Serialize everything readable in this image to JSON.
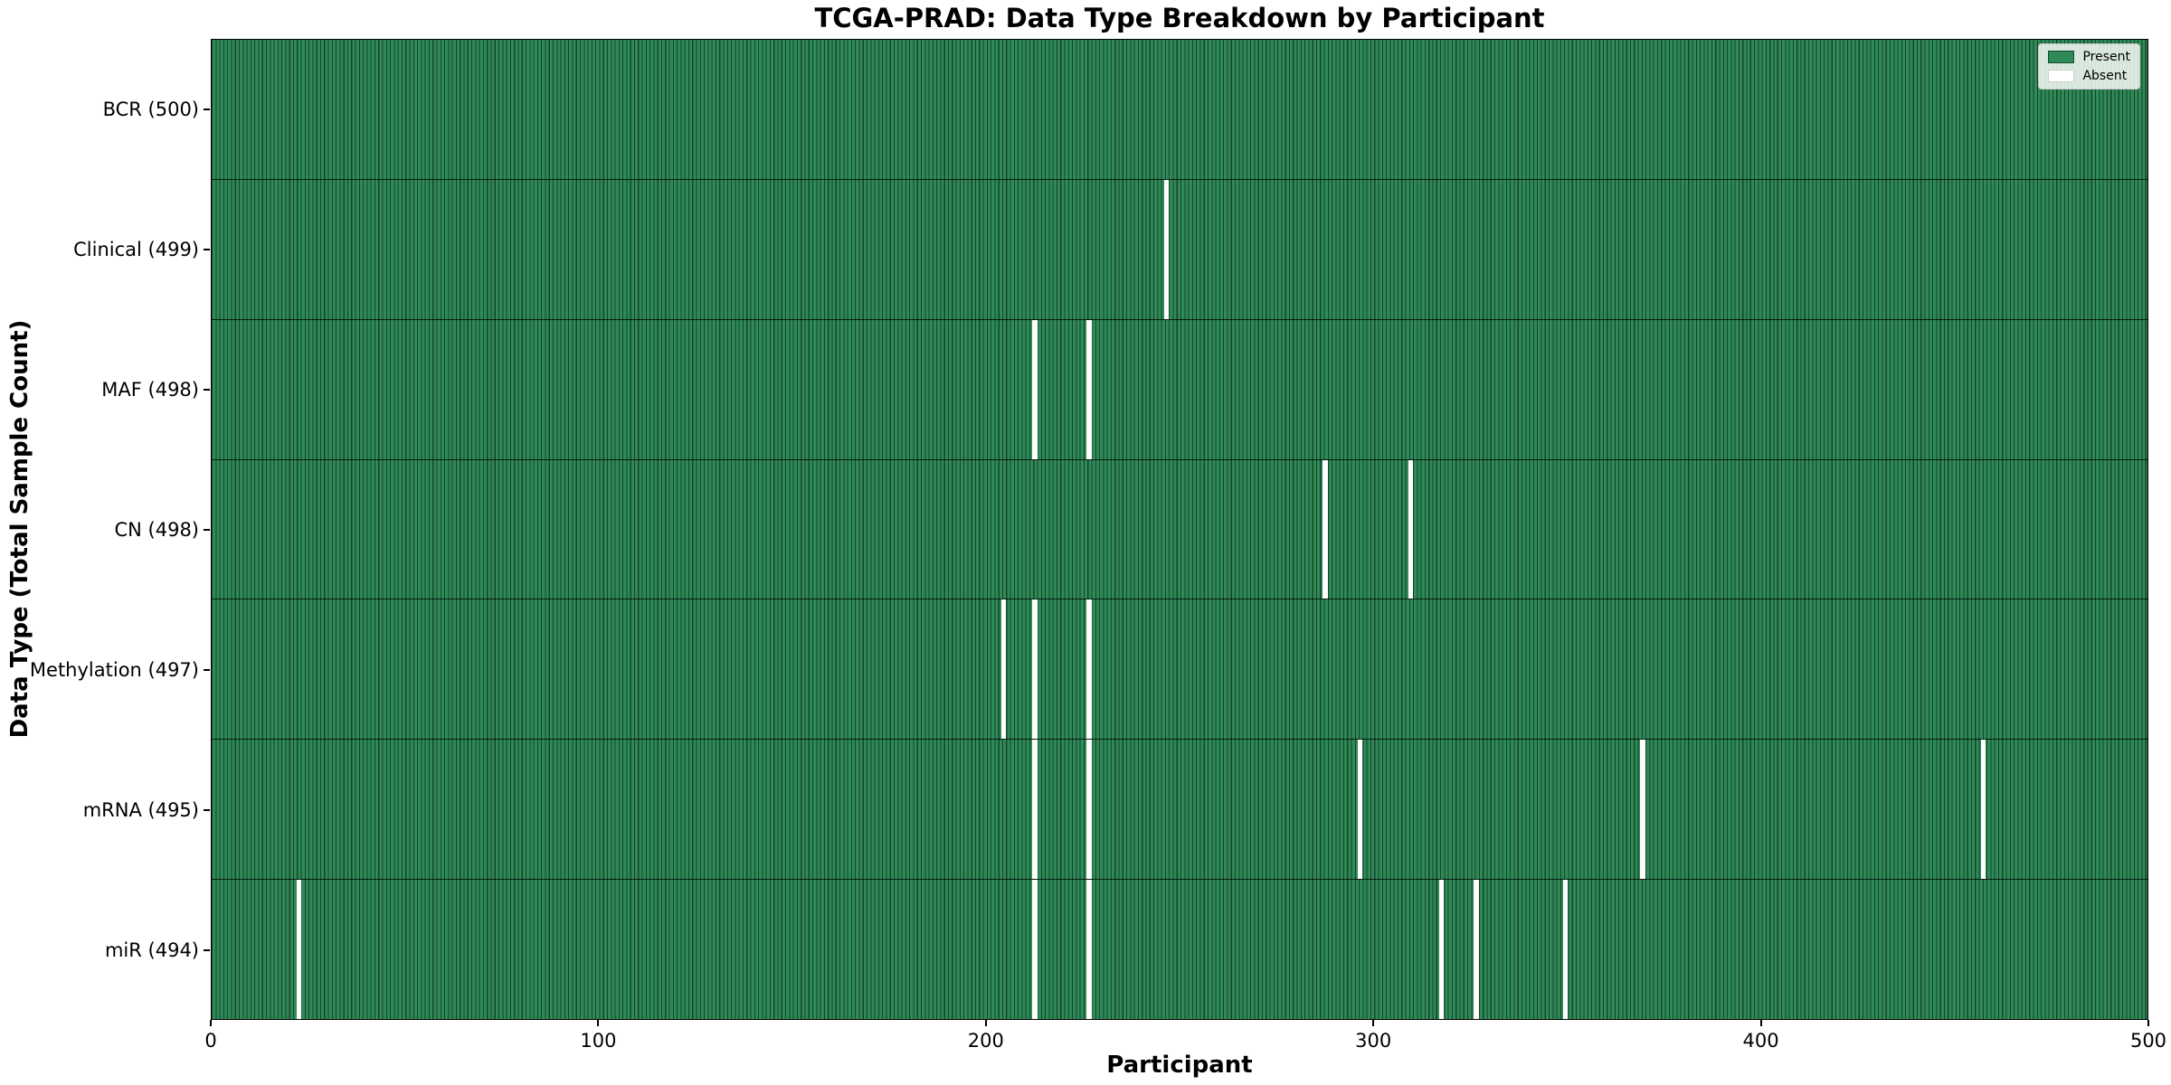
{
  "title": "TCGA-PRAD: Data Type Breakdown by Participant",
  "xlabel": "Participant",
  "ylabel": "Data Type (Total Sample Count)",
  "legend": {
    "present_label": "Present",
    "absent_label": "Absent"
  },
  "colors": {
    "present": "#2e8b57",
    "absent": "#ffffff",
    "cell_edge": "rgba(0,0,0,0.52)"
  },
  "chart_data": {
    "type": "heatmap",
    "title": "TCGA-PRAD: Data Type Breakdown by Participant",
    "xlabel": "Participant",
    "ylabel": "Data Type (Total Sample Count)",
    "x_range": [
      0,
      500
    ],
    "n_participants": 500,
    "x_ticks": [
      0,
      100,
      200,
      300,
      400,
      500
    ],
    "legend_entries": [
      {
        "label": "Present",
        "color": "#2e8b57"
      },
      {
        "label": "Absent",
        "color": "#ffffff"
      }
    ],
    "rows": [
      {
        "name": "BCR",
        "label": "BCR (500)",
        "total": 500,
        "missing_participants": []
      },
      {
        "name": "Clinical",
        "label": "Clinical (499)",
        "total": 499,
        "missing_participants": [
          246
        ]
      },
      {
        "name": "MAF",
        "label": "MAF (498)",
        "total": 498,
        "missing_participants": [
          212,
          226
        ]
      },
      {
        "name": "CN",
        "label": "CN (498)",
        "total": 498,
        "missing_participants": [
          287,
          309
        ]
      },
      {
        "name": "Methylation",
        "label": "Methylation (497)",
        "total": 497,
        "missing_participants": [
          204,
          212,
          226
        ]
      },
      {
        "name": "mRNA",
        "label": "mRNA (495)",
        "total": 495,
        "missing_participants": [
          212,
          226,
          296,
          369,
          457
        ]
      },
      {
        "name": "miR",
        "label": "miR (494)",
        "total": 494,
        "missing_participants": [
          22,
          212,
          226,
          317,
          326,
          349
        ]
      }
    ]
  }
}
